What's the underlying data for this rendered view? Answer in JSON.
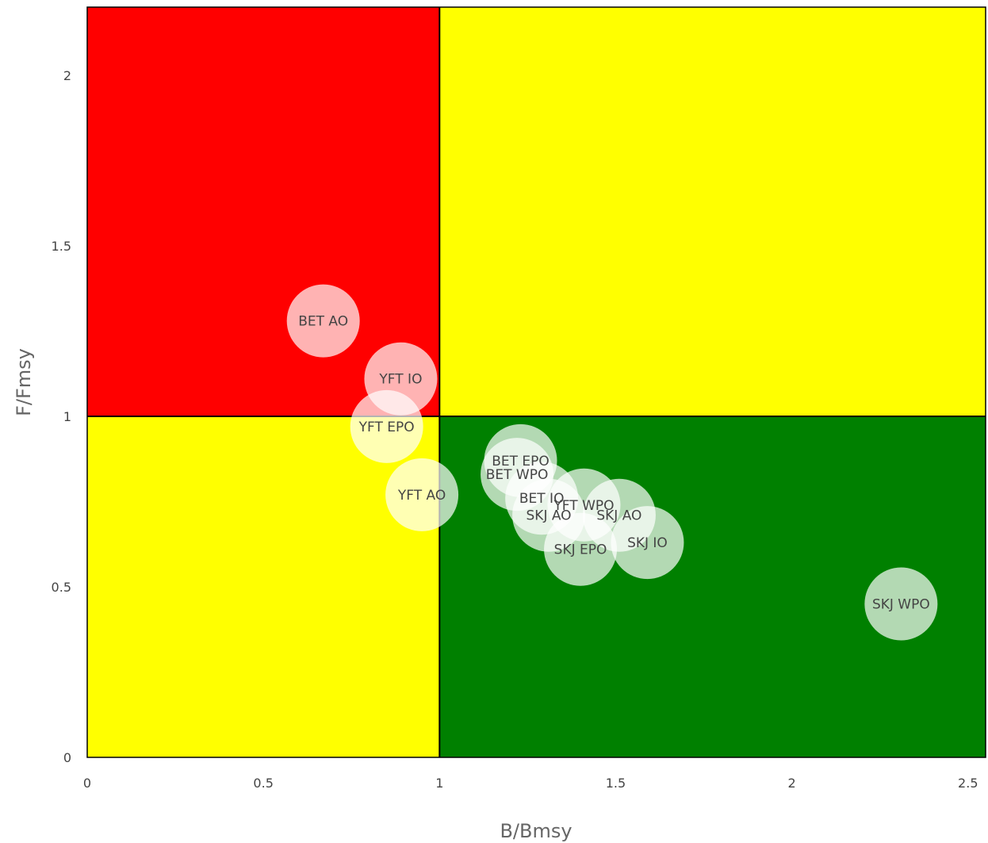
{
  "chart_data": {
    "type": "scatter",
    "title": "",
    "xlabel": "B/Bmsy",
    "ylabel": "F/Fmsy",
    "xlim": [
      0,
      2.55
    ],
    "ylim": [
      0,
      2.2
    ],
    "x_ticks": [
      "0",
      "0.5",
      "1",
      "1.5",
      "2",
      "2.5"
    ],
    "y_ticks": [
      "0",
      "0.5",
      "1",
      "1.5",
      "2"
    ],
    "grid": false,
    "legend": "none",
    "quadrants": [
      {
        "x": [
          0,
          1
        ],
        "y": [
          1,
          2.2
        ],
        "color": "#ff0000"
      },
      {
        "x": [
          1,
          2.55
        ],
        "y": [
          1,
          2.2
        ],
        "color": "#ffff00"
      },
      {
        "x": [
          0,
          1
        ],
        "y": [
          0,
          1
        ],
        "color": "#ffff00"
      },
      {
        "x": [
          1,
          2.55
        ],
        "y": [
          0,
          1
        ],
        "color": "#008000"
      }
    ],
    "reference_lines": {
      "x": 1,
      "y": 1
    },
    "points": [
      {
        "label": "BET AO",
        "x": 0.67,
        "y": 1.28
      },
      {
        "label": "YFT IO",
        "x": 0.89,
        "y": 1.11
      },
      {
        "label": "YFT EPO",
        "x": 0.85,
        "y": 0.97
      },
      {
        "label": "YFT AO",
        "x": 0.95,
        "y": 0.77
      },
      {
        "label": "BET EPO",
        "x": 1.23,
        "y": 0.87
      },
      {
        "label": "BET WPO",
        "x": 1.22,
        "y": 0.83
      },
      {
        "label": "BET IO",
        "x": 1.29,
        "y": 0.76
      },
      {
        "label": "YFT WPO",
        "x": 1.41,
        "y": 0.74
      },
      {
        "label": "SKJ AO",
        "x": 1.51,
        "y": 0.71
      },
      {
        "label": "SKJ AO",
        "x": 1.31,
        "y": 0.71
      },
      {
        "label": "SKJ IO",
        "x": 1.59,
        "y": 0.63
      },
      {
        "label": "SKJ EPO",
        "x": 1.4,
        "y": 0.61
      },
      {
        "label": "SKJ WPO",
        "x": 2.31,
        "y": 0.45
      }
    ]
  }
}
